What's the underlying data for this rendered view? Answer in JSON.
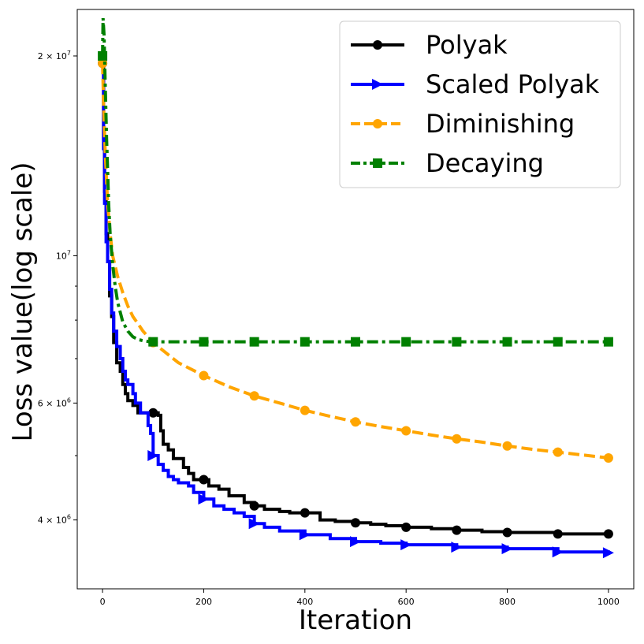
{
  "chart_data": {
    "type": "line",
    "title": "",
    "xlabel": "Iteration",
    "ylabel": "Loss value(log scale)",
    "xlim": [
      -50,
      1050
    ],
    "ylim": [
      3150000,
      23500000
    ],
    "yscale": "log",
    "x_ticks": [
      {
        "value": 0,
        "label": "0"
      },
      {
        "value": 200,
        "label": "200"
      },
      {
        "value": 400,
        "label": "400"
      },
      {
        "value": 600,
        "label": "600"
      },
      {
        "value": 800,
        "label": "800"
      },
      {
        "value": 1000,
        "label": "1000"
      }
    ],
    "y_ticks": [
      {
        "value": 20000000,
        "base": "2 × 10",
        "exp": "7"
      },
      {
        "value": 10000000,
        "base": "10",
        "exp": "7"
      },
      {
        "value": 6000000,
        "base": "6 × 10",
        "exp": "6"
      },
      {
        "value": 4000000,
        "base": "4 × 10",
        "exp": "6"
      }
    ],
    "y_minor_ticks": [
      3000000,
      5000000,
      7000000,
      8000000,
      9000000
    ],
    "legend_position": "top-right",
    "series": [
      {
        "name": "Polyak",
        "color": "#000000",
        "dash": "solid",
        "marker": "circle",
        "step": true,
        "x": [
          0,
          2,
          4,
          7,
          10,
          14,
          18,
          22,
          28,
          35,
          40,
          45,
          50,
          60,
          70,
          85,
          100,
          110,
          115,
          120,
          130,
          140,
          160,
          170,
          180,
          200,
          210,
          230,
          250,
          280,
          300,
          320,
          350,
          370,
          400,
          430,
          460,
          500,
          530,
          560,
          600,
          650,
          700,
          750,
          800,
          900,
          1000
        ],
        "y": [
          19500000,
          15000000,
          12500000,
          10800000,
          9800000,
          8700000,
          8100000,
          7400000,
          6900000,
          6700000,
          6400000,
          6200000,
          6050000,
          5950000,
          5800000,
          5800000,
          5800000,
          5750000,
          5450000,
          5200000,
          5100000,
          4950000,
          4800000,
          4700000,
          4600000,
          4600000,
          4500000,
          4450000,
          4350000,
          4250000,
          4200000,
          4150000,
          4120000,
          4100000,
          4100000,
          4000000,
          3980000,
          3960000,
          3940000,
          3920000,
          3900000,
          3880000,
          3860000,
          3840000,
          3830000,
          3810000,
          3810000
        ],
        "markers_at": [
          0,
          100,
          200,
          300,
          400,
          500,
          600,
          700,
          800,
          900,
          1000
        ]
      },
      {
        "name": "Scaled Polyak",
        "color": "#0000ff",
        "dash": "solid",
        "marker": "triangle-right",
        "step": true,
        "x": [
          0,
          2,
          4,
          7,
          10,
          14,
          18,
          22,
          28,
          35,
          40,
          45,
          50,
          60,
          65,
          75,
          90,
          95,
          100,
          110,
          120,
          130,
          140,
          150,
          170,
          180,
          200,
          220,
          240,
          260,
          280,
          300,
          320,
          350,
          400,
          450,
          500,
          550,
          600,
          700,
          800,
          900,
          1000
        ],
        "y": [
          19000000,
          14500000,
          12000000,
          10500000,
          9800000,
          8900000,
          8200000,
          7700000,
          7300000,
          7000000,
          6700000,
          6500000,
          6400000,
          6200000,
          6000000,
          5800000,
          5550000,
          5400000,
          5000000,
          4850000,
          4750000,
          4650000,
          4600000,
          4550000,
          4500000,
          4400000,
          4300000,
          4200000,
          4150000,
          4100000,
          4050000,
          3950000,
          3900000,
          3850000,
          3800000,
          3750000,
          3710000,
          3690000,
          3670000,
          3640000,
          3620000,
          3580000,
          3570000
        ],
        "markers_at": [
          100,
          200,
          300,
          400,
          500,
          600,
          700,
          800,
          900,
          1000
        ]
      },
      {
        "name": "Diminishing",
        "color": "#ffa500",
        "dash": "dashed",
        "marker": "circle",
        "step": false,
        "x": [
          0,
          2,
          5,
          10,
          15,
          20,
          30,
          40,
          50,
          60,
          70,
          80,
          100,
          150,
          200,
          250,
          300,
          350,
          400,
          450,
          500,
          550,
          600,
          650,
          700,
          750,
          800,
          850,
          900,
          950,
          1000
        ],
        "y": [
          19500000,
          17000000,
          14500000,
          12000000,
          10800000,
          10000000,
          9300000,
          8800000,
          8400000,
          8100000,
          7900000,
          7700000,
          7400000,
          6900000,
          6600000,
          6350000,
          6150000,
          6000000,
          5850000,
          5730000,
          5620000,
          5530000,
          5450000,
          5370000,
          5300000,
          5240000,
          5170000,
          5110000,
          5060000,
          5010000,
          4960000
        ],
        "markers_at": [
          0,
          100,
          200,
          300,
          400,
          500,
          600,
          700,
          800,
          900,
          1000
        ]
      },
      {
        "name": "Decaying",
        "color": "#008000",
        "dash": "dashdot",
        "marker": "square",
        "step": false,
        "x": [
          0,
          1,
          3,
          5,
          8,
          10,
          12,
          15,
          20,
          25,
          30,
          40,
          50,
          60,
          70,
          80,
          90,
          100,
          120,
          150,
          200,
          300,
          400,
          500,
          600,
          700,
          800,
          900,
          1000
        ],
        "y": [
          20000000,
          22800000,
          21500000,
          18500000,
          15000000,
          13500000,
          12000000,
          10800000,
          9700000,
          9000000,
          8500000,
          7950000,
          7700000,
          7550000,
          7480000,
          7450000,
          7430000,
          7420000,
          7420000,
          7420000,
          7420000,
          7420000,
          7420000,
          7420000,
          7420000,
          7420000,
          7420000,
          7420000,
          7420000
        ],
        "markers_at": [
          0,
          100,
          200,
          300,
          400,
          500,
          600,
          700,
          800,
          900,
          1000
        ]
      }
    ]
  }
}
